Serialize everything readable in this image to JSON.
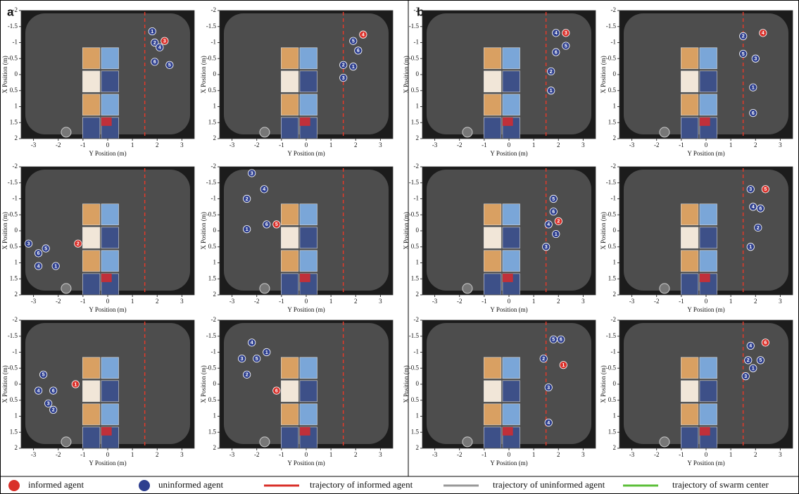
{
  "axes": {
    "xlabel": "Y Position (m)",
    "ylabel": "X Position (m)",
    "xlim": [
      -3.5,
      3.5
    ],
    "ylim": [
      -2,
      2
    ],
    "xticks": [
      -3,
      -2,
      -1,
      0,
      1,
      2,
      3
    ],
    "yticks": [
      -2,
      -1.5,
      -1,
      -0.5,
      0,
      0.5,
      1,
      1.5,
      2
    ]
  },
  "halves": [
    {
      "label": "a",
      "panels": [
        {
          "agents": [
            {
              "label": "3",
              "informed": true,
              "y_position": 2.3,
              "x_position": -1.05
            },
            {
              "label": "1",
              "informed": false,
              "y_position": 1.8,
              "x_position": -1.35
            },
            {
              "label": "2",
              "informed": false,
              "y_position": 1.9,
              "x_position": -1.0
            },
            {
              "label": "4",
              "informed": false,
              "y_position": 2.1,
              "x_position": -0.85
            },
            {
              "label": "6",
              "informed": false,
              "y_position": 1.9,
              "x_position": -0.4
            },
            {
              "label": "5",
              "informed": false,
              "y_position": 2.5,
              "x_position": -0.3
            }
          ]
        },
        {
          "agents": [
            {
              "label": "4",
              "informed": true,
              "y_position": 2.3,
              "x_position": -1.25
            },
            {
              "label": "5",
              "informed": false,
              "y_position": 1.9,
              "x_position": -1.05
            },
            {
              "label": "6",
              "informed": false,
              "y_position": 2.1,
              "x_position": -0.75
            },
            {
              "label": "2",
              "informed": false,
              "y_position": 1.5,
              "x_position": -0.3
            },
            {
              "label": "1",
              "informed": false,
              "y_position": 1.9,
              "x_position": -0.25
            },
            {
              "label": "3",
              "informed": false,
              "y_position": 1.5,
              "x_position": 0.1
            }
          ]
        },
        {
          "agents": [
            {
              "label": "2",
              "informed": true,
              "y_position": -1.2,
              "x_position": 0.4
            },
            {
              "label": "3",
              "informed": false,
              "y_position": -3.2,
              "x_position": 0.4
            },
            {
              "label": "5",
              "informed": false,
              "y_position": -2.5,
              "x_position": 0.55
            },
            {
              "label": "6",
              "informed": false,
              "y_position": -2.8,
              "x_position": 0.7
            },
            {
              "label": "4",
              "informed": false,
              "y_position": -2.8,
              "x_position": 1.1
            },
            {
              "label": "1",
              "informed": false,
              "y_position": -2.1,
              "x_position": 1.1
            }
          ]
        },
        {
          "agents": [
            {
              "label": "5",
              "informed": true,
              "y_position": -1.2,
              "x_position": -0.2
            },
            {
              "label": "3",
              "informed": false,
              "y_position": -2.2,
              "x_position": -1.8
            },
            {
              "label": "4",
              "informed": false,
              "y_position": -1.7,
              "x_position": -1.3
            },
            {
              "label": "2",
              "informed": false,
              "y_position": -2.4,
              "x_position": -1.0
            },
            {
              "label": "6",
              "informed": false,
              "y_position": -1.6,
              "x_position": -0.2
            },
            {
              "label": "1",
              "informed": false,
              "y_position": -2.4,
              "x_position": -0.05
            }
          ]
        },
        {
          "agents": [
            {
              "label": "1",
              "informed": true,
              "y_position": -1.3,
              "x_position": 0.0
            },
            {
              "label": "5",
              "informed": false,
              "y_position": -2.6,
              "x_position": -0.3
            },
            {
              "label": "4",
              "informed": false,
              "y_position": -2.8,
              "x_position": 0.2
            },
            {
              "label": "6",
              "informed": false,
              "y_position": -2.2,
              "x_position": 0.2
            },
            {
              "label": "3",
              "informed": false,
              "y_position": -2.4,
              "x_position": 0.6
            },
            {
              "label": "2",
              "informed": false,
              "y_position": -2.2,
              "x_position": 0.8
            }
          ]
        },
        {
          "agents": [
            {
              "label": "6",
              "informed": true,
              "y_position": -1.2,
              "x_position": 0.2
            },
            {
              "label": "4",
              "informed": false,
              "y_position": -2.2,
              "x_position": -1.3
            },
            {
              "label": "1",
              "informed": false,
              "y_position": -1.6,
              "x_position": -1.0
            },
            {
              "label": "3",
              "informed": false,
              "y_position": -2.6,
              "x_position": -0.8
            },
            {
              "label": "5",
              "informed": false,
              "y_position": -2.0,
              "x_position": -0.8
            },
            {
              "label": "2",
              "informed": false,
              "y_position": -2.4,
              "x_position": -0.3
            }
          ]
        }
      ]
    },
    {
      "label": "b",
      "panels": [
        {
          "agents": [
            {
              "label": "3",
              "informed": true,
              "y_position": 2.3,
              "x_position": -1.3
            },
            {
              "label": "4",
              "informed": false,
              "y_position": 1.9,
              "x_position": -1.3
            },
            {
              "label": "5",
              "informed": false,
              "y_position": 2.3,
              "x_position": -0.9
            },
            {
              "label": "6",
              "informed": false,
              "y_position": 1.9,
              "x_position": -0.7
            },
            {
              "label": "2",
              "informed": false,
              "y_position": 1.7,
              "x_position": -0.1
            },
            {
              "label": "1",
              "informed": false,
              "y_position": 1.7,
              "x_position": 0.5
            }
          ]
        },
        {
          "agents": [
            {
              "label": "4",
              "informed": true,
              "y_position": 2.3,
              "x_position": -1.3
            },
            {
              "label": "2",
              "informed": false,
              "y_position": 1.5,
              "x_position": -1.2
            },
            {
              "label": "5",
              "informed": false,
              "y_position": 1.5,
              "x_position": -0.65
            },
            {
              "label": "3",
              "informed": false,
              "y_position": 2.0,
              "x_position": -0.5
            },
            {
              "label": "1",
              "informed": false,
              "y_position": 1.9,
              "x_position": 0.4
            },
            {
              "label": "6",
              "informed": false,
              "y_position": 1.9,
              "x_position": 1.2
            }
          ]
        },
        {
          "agents": [
            {
              "label": "2",
              "informed": true,
              "y_position": 2.0,
              "x_position": -0.3
            },
            {
              "label": "5",
              "informed": false,
              "y_position": 1.8,
              "x_position": -1.0
            },
            {
              "label": "6",
              "informed": false,
              "y_position": 1.8,
              "x_position": -0.6
            },
            {
              "label": "4",
              "informed": false,
              "y_position": 1.6,
              "x_position": -0.2
            },
            {
              "label": "1",
              "informed": false,
              "y_position": 1.9,
              "x_position": 0.1
            },
            {
              "label": "3",
              "informed": false,
              "y_position": 1.5,
              "x_position": 0.5
            }
          ]
        },
        {
          "agents": [
            {
              "label": "5",
              "informed": true,
              "y_position": 2.4,
              "x_position": -1.3
            },
            {
              "label": "3",
              "informed": false,
              "y_position": 1.8,
              "x_position": -1.3
            },
            {
              "label": "4",
              "informed": false,
              "y_position": 1.9,
              "x_position": -0.75
            },
            {
              "label": "6",
              "informed": false,
              "y_position": 2.2,
              "x_position": -0.7
            },
            {
              "label": "2",
              "informed": false,
              "y_position": 2.1,
              "x_position": -0.1
            },
            {
              "label": "1",
              "informed": false,
              "y_position": 1.8,
              "x_position": 0.5
            }
          ]
        },
        {
          "agents": [
            {
              "label": "1",
              "informed": true,
              "y_position": 2.2,
              "x_position": -0.6
            },
            {
              "label": "5",
              "informed": false,
              "y_position": 1.8,
              "x_position": -1.4
            },
            {
              "label": "6",
              "informed": false,
              "y_position": 2.1,
              "x_position": -1.4
            },
            {
              "label": "2",
              "informed": false,
              "y_position": 1.4,
              "x_position": -0.8
            },
            {
              "label": "3",
              "informed": false,
              "y_position": 1.6,
              "x_position": 0.1
            },
            {
              "label": "4",
              "informed": false,
              "y_position": 1.6,
              "x_position": 1.2
            }
          ]
        },
        {
          "agents": [
            {
              "label": "6",
              "informed": true,
              "y_position": 2.4,
              "x_position": -1.3
            },
            {
              "label": "4",
              "informed": false,
              "y_position": 1.8,
              "x_position": -1.2
            },
            {
              "label": "2",
              "informed": false,
              "y_position": 1.7,
              "x_position": -0.75
            },
            {
              "label": "5",
              "informed": false,
              "y_position": 2.2,
              "x_position": -0.75
            },
            {
              "label": "1",
              "informed": false,
              "y_position": 1.9,
              "x_position": -0.5
            },
            {
              "label": "3",
              "informed": false,
              "y_position": 1.6,
              "x_position": -0.25
            }
          ]
        }
      ]
    }
  ],
  "legend": [
    {
      "label": "informed agent",
      "color": "#d9302a"
    },
    {
      "label": "uninformed agent",
      "color": "#2e3f8f"
    },
    {
      "label": "trajectory of informed agent",
      "color": "#d9302a"
    },
    {
      "label": "trajectory of uninformed agent",
      "color": "#999999"
    },
    {
      "label": "trajectory of swarm center",
      "color": "#5cbf3a"
    }
  ]
}
